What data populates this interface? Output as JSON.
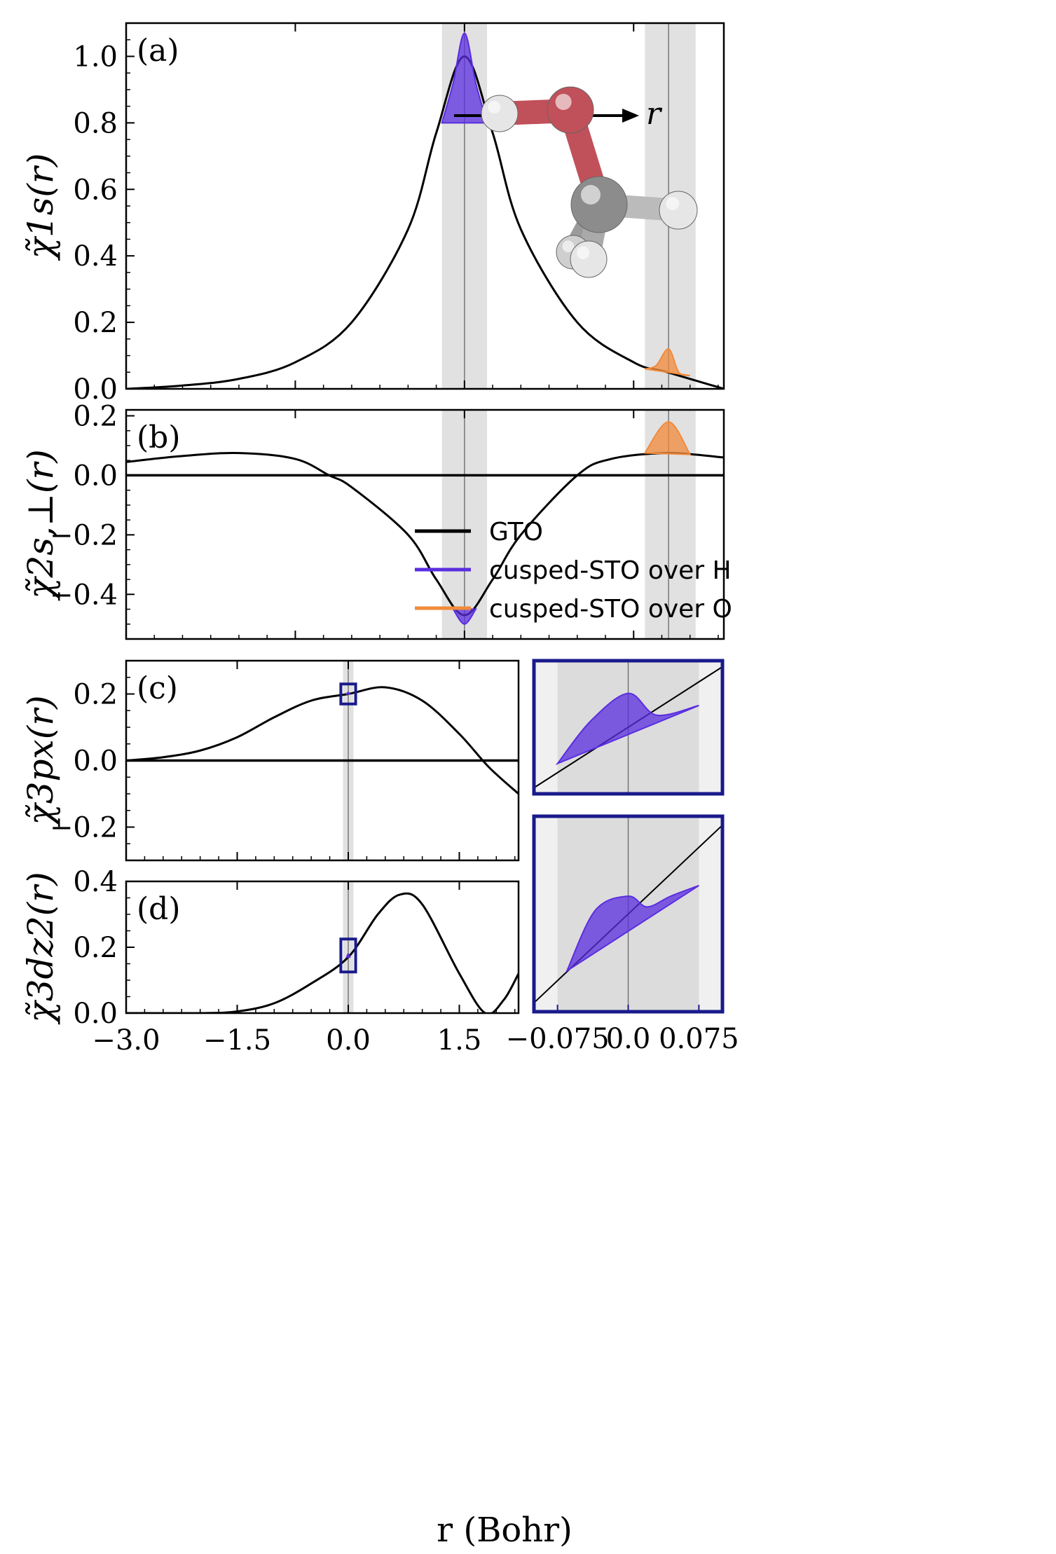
{
  "figure": {
    "xlabel": "r (Bohr)",
    "legend": {
      "placement": "panel-b center-right",
      "entries": [
        {
          "label": "GTO",
          "color": "#000000"
        },
        {
          "label": "cusped-STO over H",
          "color": "#5a2de0"
        },
        {
          "label": "cusped-STO over O",
          "color": "#f28a3a"
        }
      ]
    },
    "inset_molecule": {
      "arrow_label": "r",
      "atom_colors": {
        "O": "#c0505a",
        "C": "#8c8c8c",
        "H": "#e6e6e6"
      }
    }
  },
  "chart_data": [
    {
      "type": "line",
      "panel": "(a)",
      "ylabel": "χ̃1s(r)",
      "xlim": [
        -3.0,
        2.3
      ],
      "ylim": [
        0,
        1.1
      ],
      "yticks": [
        "0.0",
        "0.2",
        "0.4",
        "0.6",
        "0.8",
        "1.0"
      ],
      "series": [
        {
          "name": "GTO",
          "x": [
            -3.0,
            -2.5,
            -2.0,
            -1.5,
            -1.0,
            -0.5,
            -0.25,
            0.0,
            0.25,
            0.5,
            1.0,
            1.5,
            1.8,
            2.3
          ],
          "y": [
            0.0,
            0.01,
            0.03,
            0.08,
            0.2,
            0.48,
            0.77,
            1.0,
            0.77,
            0.48,
            0.2,
            0.08,
            0.05,
            0.0
          ]
        },
        {
          "name": "cusped-STO over H",
          "x": [
            -0.2,
            -0.1,
            0.0,
            0.1,
            0.2
          ],
          "y": [
            0.8,
            0.92,
            1.07,
            0.92,
            0.8
          ]
        },
        {
          "name": "cusped-STO over O",
          "x": [
            1.6,
            1.7,
            1.81,
            1.9,
            2.0
          ],
          "y": [
            0.06,
            0.07,
            0.12,
            0.05,
            0.04
          ]
        }
      ]
    },
    {
      "type": "line",
      "panel": "(b)",
      "ylabel": "χ̃2s,⊥(r)",
      "xlim": [
        -3.0,
        2.3
      ],
      "ylim": [
        -0.55,
        0.22
      ],
      "yticks": [
        "−0.4",
        "−0.2",
        "0.0",
        "0.2"
      ],
      "series": [
        {
          "name": "GTO",
          "x": [
            -3.0,
            -2.5,
            -2.0,
            -1.5,
            -1.2,
            -1.0,
            -0.5,
            -0.25,
            0.0,
            0.25,
            0.5,
            1.0,
            1.3,
            1.8,
            2.3
          ],
          "y": [
            0.045,
            0.065,
            0.075,
            0.055,
            0.0,
            -0.04,
            -0.2,
            -0.35,
            -0.47,
            -0.35,
            -0.2,
            0.0,
            0.055,
            0.075,
            0.06
          ]
        },
        {
          "name": "cusped-STO over H",
          "x": [
            -0.1,
            0.0,
            0.1
          ],
          "y": [
            -0.45,
            -0.5,
            -0.45
          ]
        },
        {
          "name": "cusped-STO over O",
          "x": [
            1.6,
            1.81,
            2.0
          ],
          "y": [
            0.075,
            0.18,
            0.07
          ]
        }
      ]
    },
    {
      "type": "line",
      "panel": "(c)",
      "ylabel": "χ̃3px(r)",
      "xlim": [
        -3.0,
        2.3
      ],
      "ylim": [
        -0.3,
        0.3
      ],
      "yticks": [
        "−0.2",
        "0.0",
        "0.2"
      ],
      "series": [
        {
          "name": "GTO",
          "x": [
            -3.0,
            -2.5,
            -2.0,
            -1.5,
            -1.0,
            -0.5,
            0.0,
            0.5,
            1.0,
            1.5,
            1.9,
            2.3
          ],
          "y": [
            0.0,
            0.01,
            0.03,
            0.07,
            0.13,
            0.18,
            0.2,
            0.22,
            0.18,
            0.08,
            -0.02,
            -0.1
          ]
        },
        {
          "name": "cusped-STO over H",
          "x": [
            -0.02,
            0.0,
            0.02
          ],
          "y": [
            0.2,
            0.205,
            0.2
          ]
        }
      ]
    },
    {
      "type": "line",
      "panel": "(d)",
      "ylabel": "χ̃3dz2(r)",
      "xlim": [
        -3.0,
        2.3
      ],
      "ylim": [
        0,
        0.4
      ],
      "yticks": [
        "0.0",
        "0.2",
        "0.4"
      ],
      "xticks": [
        "−3.0",
        "−1.5",
        "0.0",
        "1.5"
      ],
      "series": [
        {
          "name": "GTO",
          "x": [
            -3.0,
            -2.0,
            -1.5,
            -1.0,
            -0.5,
            0.0,
            0.4,
            0.7,
            1.0,
            1.5,
            1.85,
            2.1,
            2.3
          ],
          "y": [
            0.0,
            0.0,
            0.005,
            0.03,
            0.09,
            0.17,
            0.3,
            0.36,
            0.33,
            0.12,
            0.0,
            0.04,
            0.12
          ]
        },
        {
          "name": "cusped-STO over H",
          "x": [
            -0.02,
            0.0,
            0.02
          ],
          "y": [
            0.17,
            0.18,
            0.17
          ]
        }
      ]
    },
    {
      "type": "line",
      "panel": "inset-c",
      "xlim": [
        -0.1,
        0.1
      ],
      "series": [
        {
          "name": "GTO",
          "x": [
            -0.1,
            0.1
          ],
          "y": [
            0.0,
            1.0
          ]
        },
        {
          "name": "cusped-STO over H",
          "x": [
            -0.075,
            -0.04,
            0.0,
            0.03,
            0.075
          ],
          "y": [
            0.2,
            0.55,
            0.78,
            0.6,
            0.68
          ]
        }
      ]
    },
    {
      "type": "line",
      "panel": "inset-d",
      "xlim": [
        -0.1,
        0.1
      ],
      "xticks": [
        "−0.075",
        "0.0",
        "0.075"
      ],
      "series": [
        {
          "name": "GTO",
          "x": [
            -0.1,
            0.1
          ],
          "y": [
            0.0,
            1.0
          ]
        },
        {
          "name": "cusped-STO over H",
          "x": [
            -0.065,
            -0.035,
            0.0,
            0.02,
            0.045,
            0.075
          ],
          "y": [
            0.18,
            0.52,
            0.6,
            0.54,
            0.6,
            0.66
          ]
        }
      ]
    }
  ]
}
